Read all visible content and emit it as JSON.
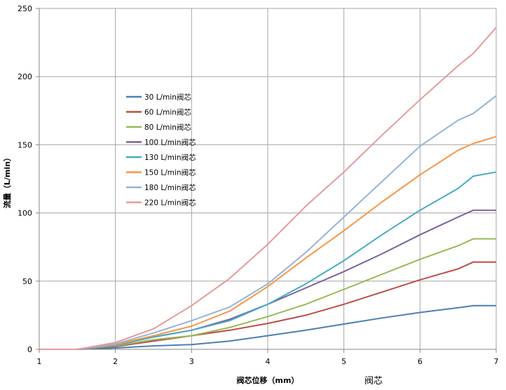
{
  "chart_data": {
    "type": "line",
    "xlabel": "阀芯位移（mm）",
    "ylabel": "流量（L/min）",
    "caption": "阀芯",
    "xlim": [
      1,
      7
    ],
    "ylim": [
      0,
      250
    ],
    "xticks": [
      1,
      2,
      3,
      4,
      5,
      6,
      7
    ],
    "yticks": [
      0,
      50,
      100,
      150,
      200,
      250
    ],
    "grid": true,
    "legend_position": "upper-left",
    "x": [
      1,
      1.5,
      2,
      2.5,
      3,
      3.5,
      4,
      4.5,
      5,
      5.5,
      6,
      6.5,
      6.7,
      7
    ],
    "series": [
      {
        "name": "30 L/min阀芯",
        "color": "#4a7ebb",
        "values": [
          0,
          0,
          1,
          2.5,
          3.5,
          6,
          10,
          14,
          18.5,
          23,
          27,
          30.5,
          32,
          32
        ]
      },
      {
        "name": "60 L/min阀芯",
        "color": "#be4b48",
        "values": [
          0,
          0,
          2,
          6,
          10,
          14,
          19,
          25,
          33,
          42,
          51,
          59,
          64,
          64
        ]
      },
      {
        "name": "80 L/min阀芯",
        "color": "#98b954",
        "values": [
          0,
          0,
          2.5,
          7,
          10,
          16,
          24,
          33,
          44,
          55,
          66,
          76,
          81,
          81
        ]
      },
      {
        "name": "100 L/min阀芯",
        "color": "#7d60a0",
        "values": [
          0,
          0,
          3,
          9,
          14,
          22,
          33,
          45,
          57,
          70,
          84,
          97,
          102,
          102
        ]
      },
      {
        "name": "130 L/min阀芯",
        "color": "#46aac5",
        "values": [
          0,
          0,
          3,
          9,
          14,
          21,
          33,
          48,
          65,
          84,
          102,
          118,
          127,
          130
        ]
      },
      {
        "name": "150 L/min阀芯",
        "color": "#f79646",
        "values": [
          0,
          0,
          3.5,
          10,
          17,
          28,
          46,
          67,
          87,
          108,
          128,
          146,
          151,
          156
        ]
      },
      {
        "name": "180 L/min阀芯",
        "color": "#95b3d7",
        "values": [
          0,
          0,
          4,
          12,
          21,
          31,
          48,
          71,
          97,
          123,
          149,
          168,
          173,
          186
        ]
      },
      {
        "name": "220 L/min阀芯",
        "color": "#e69a99",
        "values": [
          0,
          0,
          5,
          15,
          32,
          52,
          77,
          105,
          130,
          157,
          183,
          208,
          217,
          236
        ]
      }
    ]
  }
}
